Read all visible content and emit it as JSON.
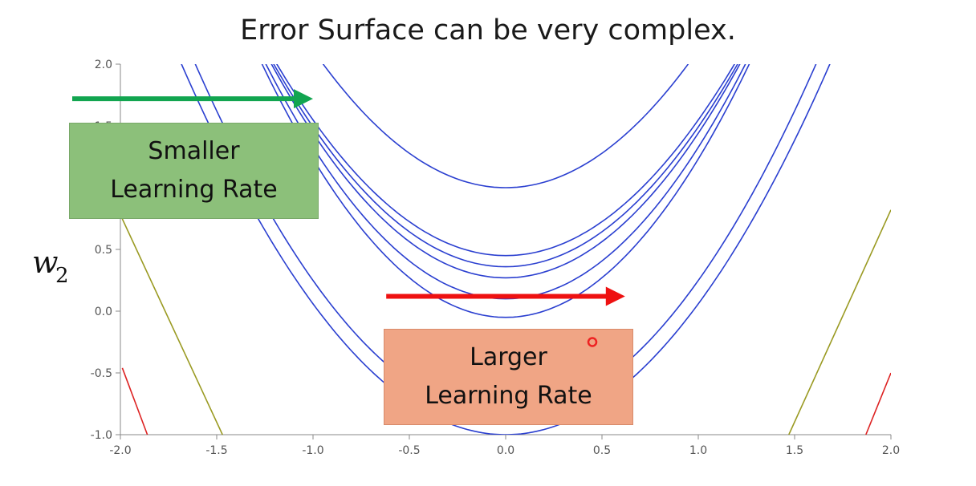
{
  "title": "Error Surface can be very complex.",
  "chart_data": {
    "type": "contour",
    "xlim": [
      -2.0,
      2.0
    ],
    "ylim": [
      -1.0,
      2.0
    ],
    "x_ticks": [
      "-2.0",
      "-1.5",
      "-1.0",
      "-0.5",
      "0.0",
      "0.5",
      "1.0",
      "1.5",
      "2.0"
    ],
    "y_ticks": [
      "-1.0",
      "-0.5",
      "0.0",
      "0.5",
      "1.0",
      "1.5",
      "2.0"
    ],
    "ylabel": "w",
    "ylabel_sub": "2",
    "contours": [
      {
        "color": "#2a3fd0",
        "vertex_w2": 1.0,
        "curvature": 2.0
      },
      {
        "color": "#2a3fd0",
        "vertex_w2": 0.45,
        "curvature": 1.97
      },
      {
        "color": "#2a3fd0",
        "vertex_w2": 0.36,
        "curvature": 2.03
      },
      {
        "color": "#2a3fd0",
        "vertex_w2": 0.27,
        "curvature": 2.1
      },
      {
        "color": "#2a3fd0",
        "vertex_w2": 0.1,
        "curvature": 2.2
      },
      {
        "color": "#2a3fd0",
        "vertex_w2": -0.05,
        "curvature": 2.3
      },
      {
        "color": "#2a3fd0",
        "vertex_w2": -0.85,
        "curvature": 1.97
      },
      {
        "color": "#2a3fd0",
        "vertex_w2": -1.0,
        "curvature": 1.9
      }
    ],
    "lines": [
      {
        "color": "#9a9a22",
        "points": [
          [
            -2.0,
            0.78
          ],
          [
            -1.47,
            -1.0
          ]
        ]
      },
      {
        "color": "#9a9a22",
        "points": [
          [
            1.47,
            -1.0
          ],
          [
            2.0,
            0.82
          ]
        ]
      },
      {
        "color": "#dd2222",
        "points": [
          [
            -1.99,
            -0.46
          ],
          [
            -1.86,
            -1.0
          ]
        ]
      },
      {
        "color": "#dd2222",
        "points": [
          [
            1.87,
            -1.0
          ],
          [
            2.0,
            -0.5
          ]
        ]
      }
    ],
    "arrows": [
      {
        "name": "smaller",
        "color": "#12a550",
        "from": [
          -2.25,
          1.72
        ],
        "to": [
          -1.0,
          1.72
        ]
      },
      {
        "name": "larger",
        "color": "#ee1111",
        "from": [
          -0.62,
          0.12
        ],
        "to": [
          0.62,
          0.12
        ]
      }
    ],
    "marker": {
      "color": "#ee2222",
      "x": 0.45,
      "y": -0.25
    }
  },
  "boxes": {
    "smaller": [
      "Smaller",
      "Learning Rate"
    ],
    "larger": [
      "Larger",
      "Learning Rate"
    ]
  }
}
